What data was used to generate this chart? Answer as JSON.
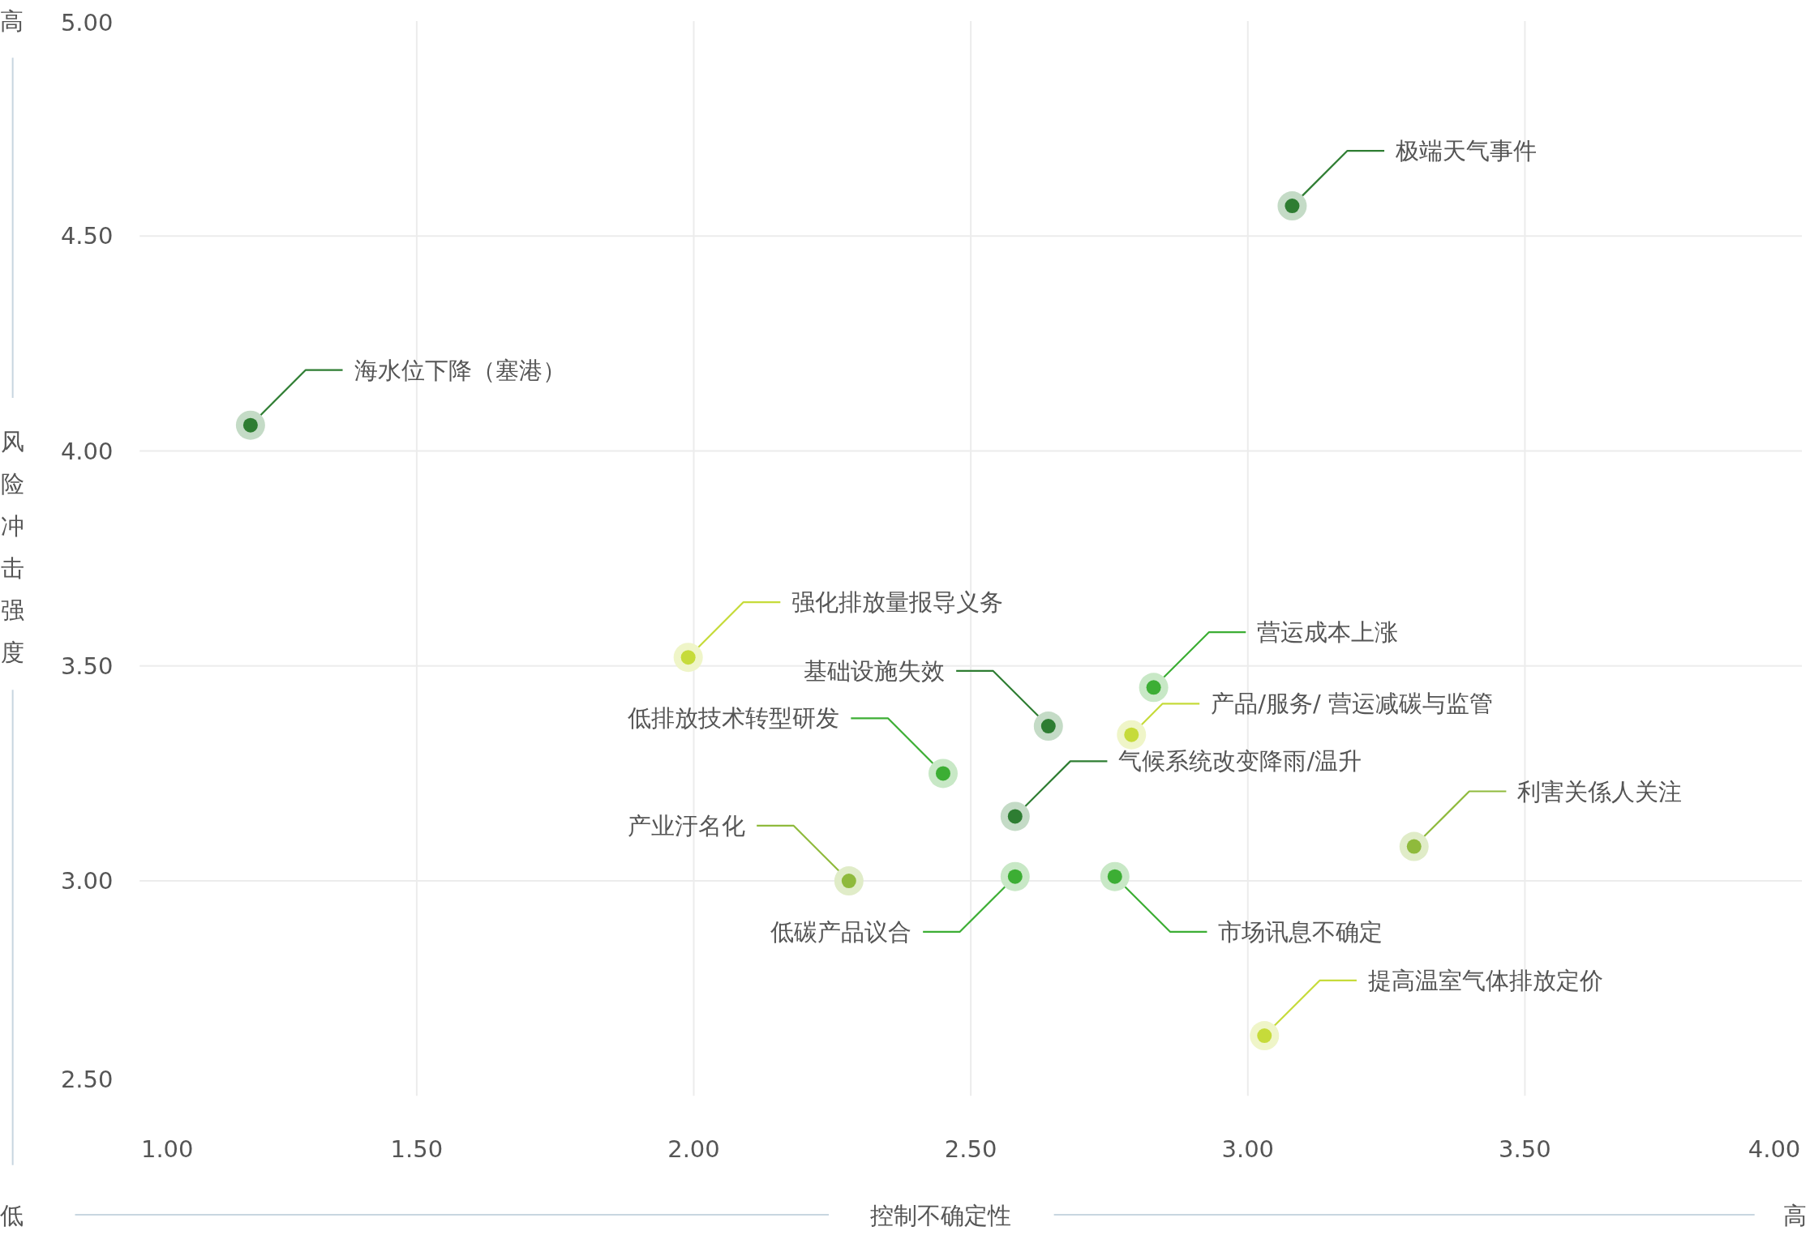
{
  "chart_data": {
    "type": "scatter",
    "xlabel": "控制不确定性",
    "ylabel": "风险冲击强度",
    "x": [
      3.08,
      1.2,
      1.99,
      2.83,
      2.64,
      2.79,
      2.45,
      2.58,
      3.3,
      2.28,
      2.58,
      2.76,
      3.03
    ],
    "values": [
      4.57,
      4.06,
      3.52,
      3.45,
      3.36,
      3.34,
      3.25,
      3.15,
      3.08,
      3.0,
      3.01,
      3.01,
      2.64
    ],
    "colors": [
      "#2e7d32",
      "#2e7d32",
      "#c6db3a",
      "#3cae34",
      "#2e7d32",
      "#c6db3a",
      "#3cae34",
      "#2e7d32",
      "#8fba3c",
      "#8fba3c",
      "#3cae34",
      "#3cae34",
      "#c6db3a"
    ],
    "marker": "circle",
    "grid": true,
    "xlim": [
      1,
      4
    ],
    "ylim": [
      2.5,
      5
    ],
    "xticks": [
      {
        "value": 1,
        "label": "1.00"
      },
      {
        "value": 1.5,
        "label": "1.50"
      },
      {
        "value": 2,
        "label": "2.00"
      },
      {
        "value": 2.5,
        "label": "2.50"
      },
      {
        "value": 3,
        "label": "3.00"
      },
      {
        "value": 3.5,
        "label": "3.50"
      },
      {
        "value": 4,
        "label": "4.00"
      }
    ],
    "yticks": [
      {
        "value": 2.5,
        "label": "2.50"
      },
      {
        "value": 3,
        "label": "3.00"
      },
      {
        "value": 3.5,
        "label": "3.50"
      },
      {
        "value": 4,
        "label": "4.00"
      },
      {
        "value": 4.5,
        "label": "4.50"
      },
      {
        "value": 5,
        "label": "5.00"
      }
    ],
    "annotations": [
      "极端天气事件",
      "海水位下降（塞港）",
      "强化排放量报导义务",
      "营运成本上涨",
      "基础设施失效",
      "产品/服务/ 营运减碳与监管",
      "低排放技术转型研发",
      "气候系统改变降雨/温升",
      "利害关係人关注",
      "产业汙名化",
      "低碳产品议合",
      "市场讯息不确定",
      "提高温室气体排放定价",
      "高",
      "低",
      "高"
    ]
  }
}
